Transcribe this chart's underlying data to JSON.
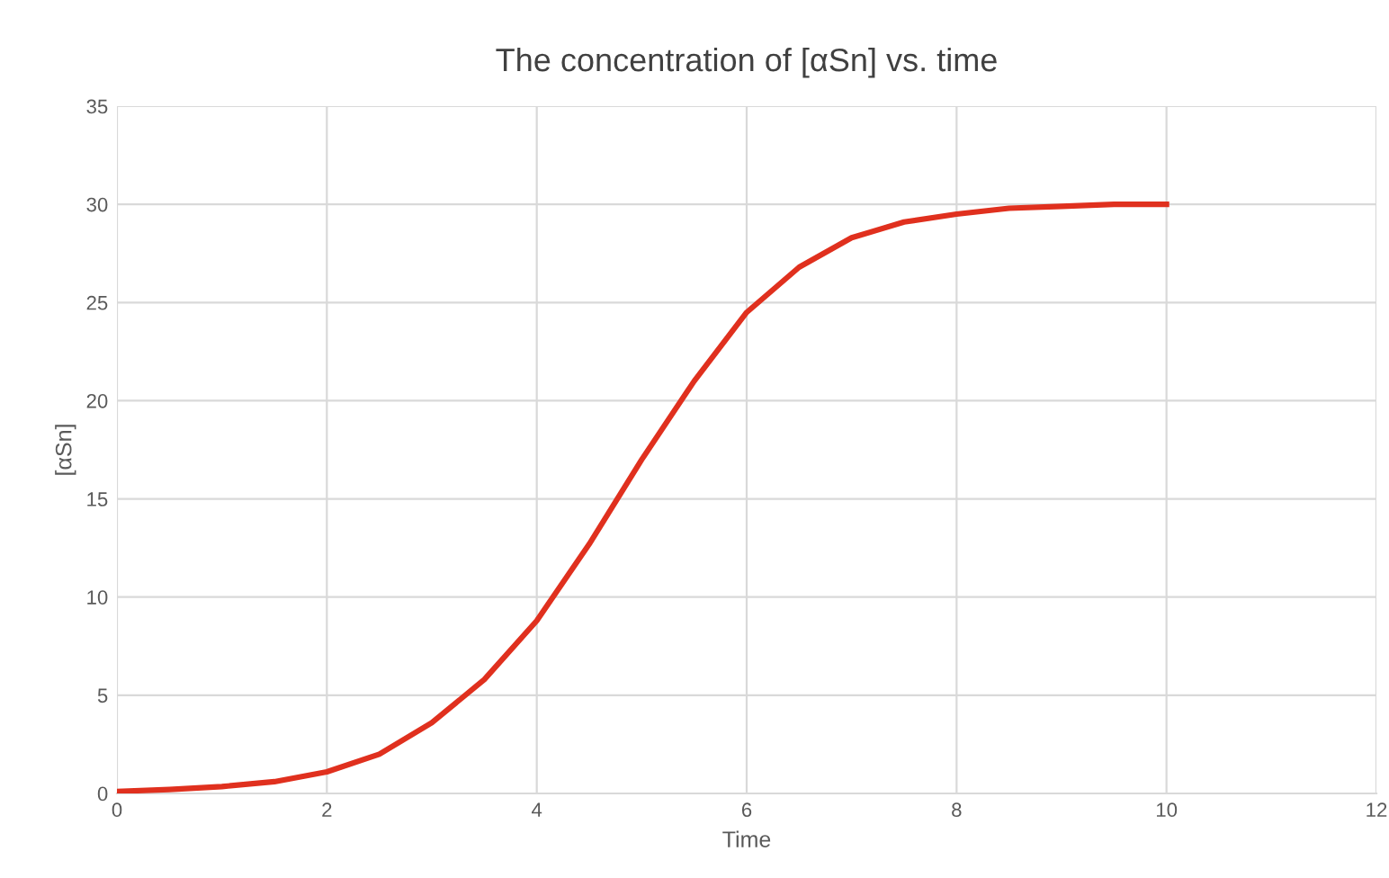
{
  "chart_data": {
    "type": "line",
    "title": "The concentration of [αSn] vs. time",
    "xlabel": "Time",
    "ylabel": "[αSn]",
    "series": [
      {
        "color": "#e0301e",
        "x": [
          0,
          0.5,
          1,
          1.5,
          2,
          2.5,
          3,
          3.5,
          4,
          4.5,
          5,
          5.5,
          6,
          6.5,
          7,
          7.5,
          8,
          8.5,
          9,
          9.5,
          10
        ],
        "values": [
          0.1,
          0.2,
          0.35,
          0.6,
          1.1,
          2,
          3.6,
          5.8,
          8.8,
          12.7,
          17,
          21,
          24.5,
          26.8,
          28.3,
          29.1,
          29.5,
          29.8,
          29.9,
          30,
          30
        ]
      }
    ],
    "xlim": [
      0,
      12
    ],
    "xticks": [
      0,
      2,
      4,
      6,
      8,
      10,
      12
    ],
    "ylim": [
      0,
      35
    ],
    "yticks": [
      0,
      5,
      10,
      15,
      20,
      25,
      30,
      35
    ],
    "grid": true,
    "marker": "none",
    "line_style": "solid"
  }
}
